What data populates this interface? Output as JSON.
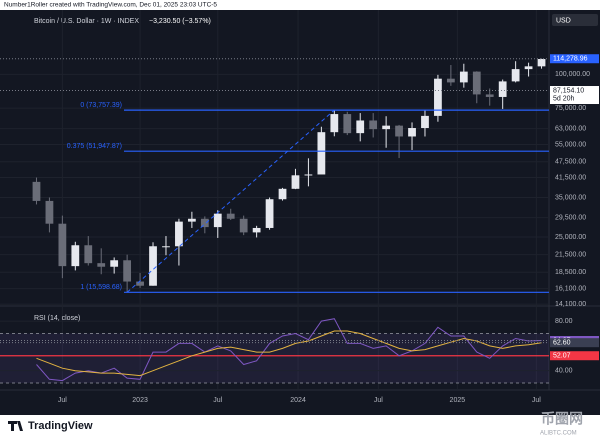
{
  "header": {
    "attribution": "Number1Roller created with TradingView.com, Dec 01, 2025 23:03 UTC-5",
    "symbol": "Bitcoin / U.S. Dollar · 1W · INDEX",
    "change": "−3,230.50 (−3.57%)",
    "currency": "USD",
    "brand": "TradingView",
    "watermark": "币圈网",
    "watermark_url": "ALIBTC.COM"
  },
  "chart_data": [
    {
      "type": "candlestick",
      "open": [
        40000,
        34000,
        28000,
        19500,
        23300,
        20000,
        19400,
        20500,
        17100,
        16500,
        23100,
        23100,
        28500,
        29200,
        27200,
        30500,
        29200,
        26000,
        27000,
        34500,
        37700,
        42300,
        42600,
        61100,
        71300,
        60600,
        67500,
        62700,
        64600,
        58900,
        63300,
        70200,
        96400,
        93400,
        102400,
        84300,
        82500,
        94200,
        104600,
        107100
      ],
      "high": [
        41500,
        35000,
        30000,
        24000,
        25200,
        22700,
        21000,
        21500,
        18400,
        23900,
        25200,
        29200,
        31000,
        29800,
        31400,
        31800,
        30000,
        27500,
        35000,
        38000,
        44700,
        48900,
        64000,
        73757.39,
        72700,
        71900,
        71900,
        70000,
        65000,
        66400,
        73500,
        99600,
        108300,
        109500,
        102700,
        88700,
        95700,
        111900,
        110500,
        114278.96
      ],
      "low": [
        33000,
        26000,
        17600,
        18800,
        19600,
        18200,
        18300,
        15598.68,
        16200,
        16500,
        21400,
        19600,
        27000,
        25800,
        24800,
        28900,
        25400,
        24900,
        26600,
        34100,
        37600,
        38500,
        42800,
        59000,
        59600,
        56500,
        58400,
        53500,
        49000,
        52500,
        58900,
        66800,
        90700,
        89300,
        78200,
        76600,
        74500,
        93400,
        98200,
        105000
      ],
      "close": [
        34000,
        28000,
        19500,
        23300,
        20000,
        19400,
        20500,
        17100,
        16500,
        23100,
        23100,
        28500,
        29200,
        27200,
        30500,
        29200,
        26000,
        27000,
        34500,
        37700,
        42300,
        42600,
        61100,
        71300,
        60600,
        67500,
        62700,
        64600,
        58900,
        63300,
        70200,
        96400,
        93400,
        102400,
        84300,
        82500,
        94200,
        104600,
        107100,
        114000
      ],
      "up_color": "#e6e8ee",
      "down_color": "#6a6d78",
      "log_scale": true,
      "ylim": [
        14000,
        146000
      ],
      "yticks": [
        {
          "value": 14100,
          "label": "14,100.00"
        },
        {
          "value": 16100,
          "label": "16,100.00"
        },
        {
          "value": 18500,
          "label": "18,500.00"
        },
        {
          "value": 21500,
          "label": "21,500.00"
        },
        {
          "value": 25000,
          "label": "25,000.00"
        },
        {
          "value": 29500,
          "label": "29,500.00"
        },
        {
          "value": 35000,
          "label": "35,000.00"
        },
        {
          "value": 41500,
          "label": "41,500.00"
        },
        {
          "value": 47500,
          "label": "47,500.00"
        },
        {
          "value": 55000,
          "label": "55,000.00"
        },
        {
          "value": 63000,
          "label": "63,000.00"
        },
        {
          "value": 75000,
          "label": "75,000.00"
        },
        {
          "value": 100000,
          "label": "100,000.00"
        }
      ],
      "xlim": [
        0,
        40
      ],
      "xticks": [
        {
          "value": 2.5,
          "label": "Jul"
        },
        {
          "value": 8.5,
          "label": "2023"
        },
        {
          "value": 14.5,
          "label": "Jul"
        },
        {
          "value": 20.7,
          "label": "2024"
        },
        {
          "value": 26.9,
          "label": "Jul"
        },
        {
          "value": 33,
          "label": "2025"
        },
        {
          "value": 39.1,
          "label": "Jul"
        }
      ],
      "levels": [
        {
          "value": 73757.39,
          "label": "0 (73,757.39)"
        },
        {
          "value": 51947.87,
          "label": "0.375 (51,947.87)"
        },
        {
          "value": 15598.68,
          "label": "1 (15,598.68)"
        }
      ],
      "level_color": "#2962ff",
      "price_labels": [
        {
          "value": 114278.96,
          "label": "114,278.96",
          "color": "#2962ff"
        },
        {
          "value": 87154.1,
          "label": "87,154.10",
          "color": "#ffffff",
          "sub": "5d 20h"
        }
      ]
    },
    {
      "type": "line",
      "title": "RSI (14, close)",
      "series": [
        {
          "color": "#7e57c2",
          "values": [
            45,
            33,
            32,
            38,
            40,
            38,
            42,
            34,
            33,
            55,
            55,
            62,
            62,
            55,
            60,
            56,
            45,
            48,
            62,
            68,
            70,
            65,
            80,
            82,
            62,
            62,
            58,
            60,
            52,
            56,
            62,
            75,
            68,
            68,
            55,
            50,
            60,
            66,
            64,
            64.37
          ]
        },
        {
          "color": "#e3b341",
          "values": [
            50,
            46,
            42,
            40,
            39,
            38,
            38,
            37,
            36,
            40,
            44,
            48,
            52,
            55,
            58,
            59,
            57,
            55,
            55,
            58,
            62,
            64,
            68,
            72,
            72,
            70,
            66,
            62,
            58,
            56,
            57,
            60,
            63,
            66,
            64,
            60,
            58,
            60,
            61,
            62.6
          ]
        }
      ],
      "ylim": [
        26,
        89
      ],
      "xlim": [
        0,
        40
      ],
      "band": [
        30,
        70
      ],
      "yticks": [
        {
          "value": 80,
          "label": "80.00"
        },
        {
          "value": 40,
          "label": "40.00"
        }
      ],
      "levels": [
        {
          "value": 52.07,
          "label": "52.07",
          "color": "#f23645"
        }
      ],
      "price_labels": [
        {
          "value": 64.37,
          "label": "64.37",
          "color": "#7e57c2"
        },
        {
          "value": 62.6,
          "label": "62.60",
          "color": "#3a3f52"
        }
      ]
    }
  ]
}
